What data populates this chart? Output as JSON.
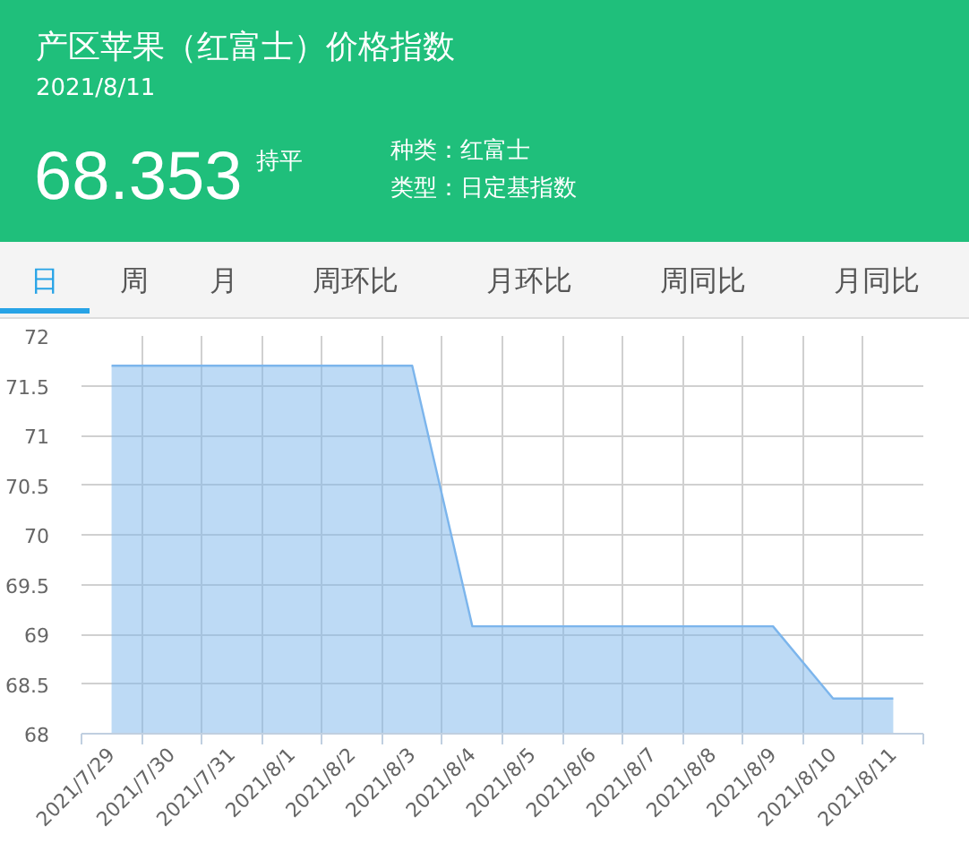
{
  "chart_data": {
    "type": "area",
    "title": "产区苹果（红富士）价格指数",
    "subtitle": "2021/8/11",
    "annotations": [
      "68.353",
      "持平",
      "种类：红富士",
      "类型：日定基指数",
      "日",
      "周",
      "月",
      "周环比",
      "月环比",
      "周同比",
      "月同比"
    ],
    "categories": [
      "2021/7/29",
      "2021/7/30",
      "2021/7/31",
      "2021/8/1",
      "2021/8/2",
      "2021/8/3",
      "2021/8/4",
      "2021/8/5",
      "2021/8/6",
      "2021/8/7",
      "2021/8/8",
      "2021/8/9",
      "2021/8/10",
      "2021/8/11"
    ],
    "values": [
      71.7,
      71.7,
      71.7,
      71.7,
      71.7,
      71.7,
      69.08,
      69.08,
      69.08,
      69.08,
      69.08,
      69.08,
      68.353,
      68.353
    ],
    "color": "#7cb5ec",
    "ylim": [
      68,
      72
    ],
    "yticks": [
      68,
      68.5,
      69,
      69.5,
      70,
      70.5,
      71,
      71.5,
      72
    ],
    "grid": true
  }
}
